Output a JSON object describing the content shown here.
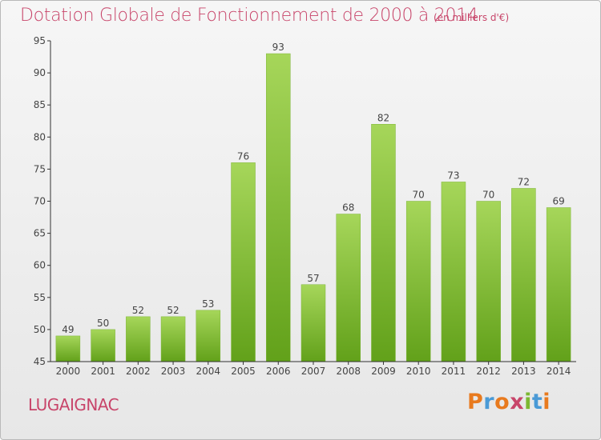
{
  "header": {
    "title": "Dotation Globale de Fonctionnement de 2000 à 2014",
    "subtitle": "(en milliers d'€)"
  },
  "footer": {
    "commune": "LUGAIGNAC",
    "logo": [
      "P",
      "r",
      "o",
      "x",
      "i",
      "t",
      "i"
    ],
    "logo_colors": [
      "#e87a1e",
      "#4a9ad6",
      "#e87a1e",
      "#c8456a",
      "#7cb832",
      "#4a9ad6",
      "#e87a1e"
    ]
  },
  "colors": {
    "bar_light": "#a6d65a",
    "bar_dark": "#62a11a",
    "title": "#c8456a"
  },
  "chart_data": {
    "type": "bar",
    "title": "Dotation Globale de Fonctionnement de 2000 à 2014",
    "subtitle": "(en milliers d'€)",
    "categories": [
      "2000",
      "2001",
      "2002",
      "2003",
      "2004",
      "2005",
      "2006",
      "2007",
      "2008",
      "2009",
      "2010",
      "2011",
      "2012",
      "2013",
      "2014"
    ],
    "values": [
      49,
      50,
      52,
      52,
      53,
      76,
      93,
      57,
      68,
      82,
      70,
      73,
      70,
      72,
      69
    ],
    "ylim": [
      45,
      95
    ],
    "yticks": [
      45,
      50,
      55,
      60,
      65,
      70,
      75,
      80,
      85,
      90,
      95
    ],
    "grid": false,
    "xlabel": "",
    "ylabel": ""
  }
}
